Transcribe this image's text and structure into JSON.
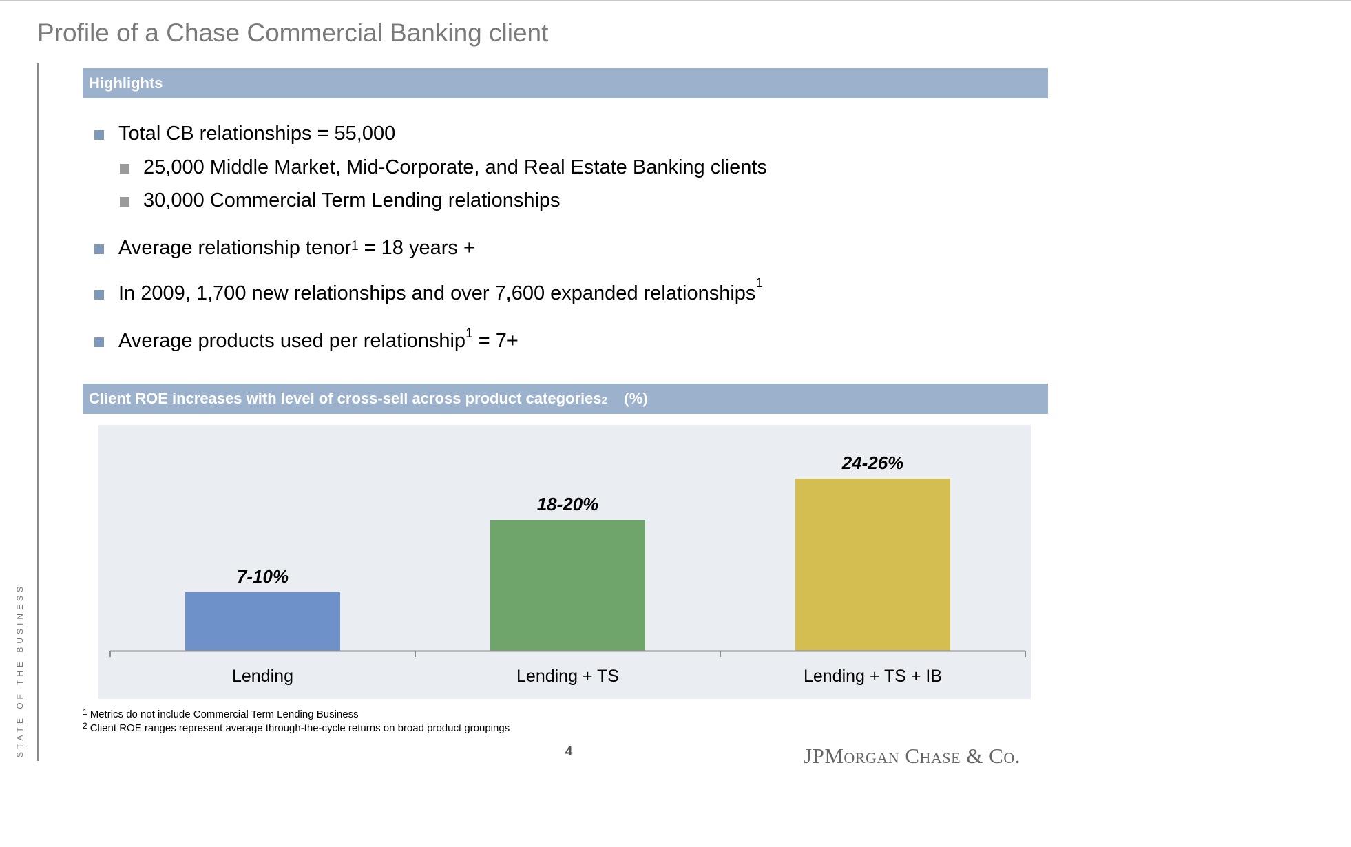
{
  "page": {
    "title": "Profile of a Chase Commercial Banking client",
    "side_label": "STATE OF THE BUSINESS",
    "page_number": "4",
    "logo_text": "JPMorgan Chase & Co."
  },
  "highlights": {
    "header": "Highlights",
    "bullets": [
      {
        "text": "Total CB relationships = 55,000"
      },
      {
        "text": "25,000 Middle Market, Mid-Corporate, and Real Estate Banking clients"
      },
      {
        "text": "30,000 Commercial Term Lending relationships"
      },
      {
        "text_before": "Average relationship tenor",
        "footnote": "1",
        "text_after": " = 18 years +"
      },
      {
        "text_before": "In 2009, 1,700 new relationships and over 7,600 expanded relationships",
        "footnote": "1",
        "text_after": ""
      },
      {
        "text_before": "Average products used per relationship",
        "footnote": "1",
        "text_after": " = 7+"
      }
    ]
  },
  "chart_section": {
    "header": "Client ROE increases with level of cross-sell across product categories",
    "header_footnote": "2",
    "header_unit": "(%)"
  },
  "chart_data": {
    "type": "bar",
    "title": "Client ROE increases with level of cross-sell across product categories (%)",
    "categories": [
      "Lending",
      "Lending + TS",
      "Lending + TS + IB"
    ],
    "ranges": [
      [
        7,
        10
      ],
      [
        18,
        20
      ],
      [
        24,
        26
      ]
    ],
    "values": [
      8.5,
      19,
      25
    ],
    "data_labels": [
      "7-10%",
      "18-20%",
      "24-26%"
    ],
    "colors": [
      "#6f91c9",
      "#6fa46a",
      "#d4bd51"
    ],
    "ylim": [
      0,
      31
    ],
    "grid": false,
    "legend": "none"
  },
  "footnotes": [
    {
      "num": "1",
      "text": "Metrics do not include Commercial Term Lending Business"
    },
    {
      "num": "2",
      "text": "Client ROE ranges represent average through-the-cycle returns on broad product groupings"
    }
  ]
}
